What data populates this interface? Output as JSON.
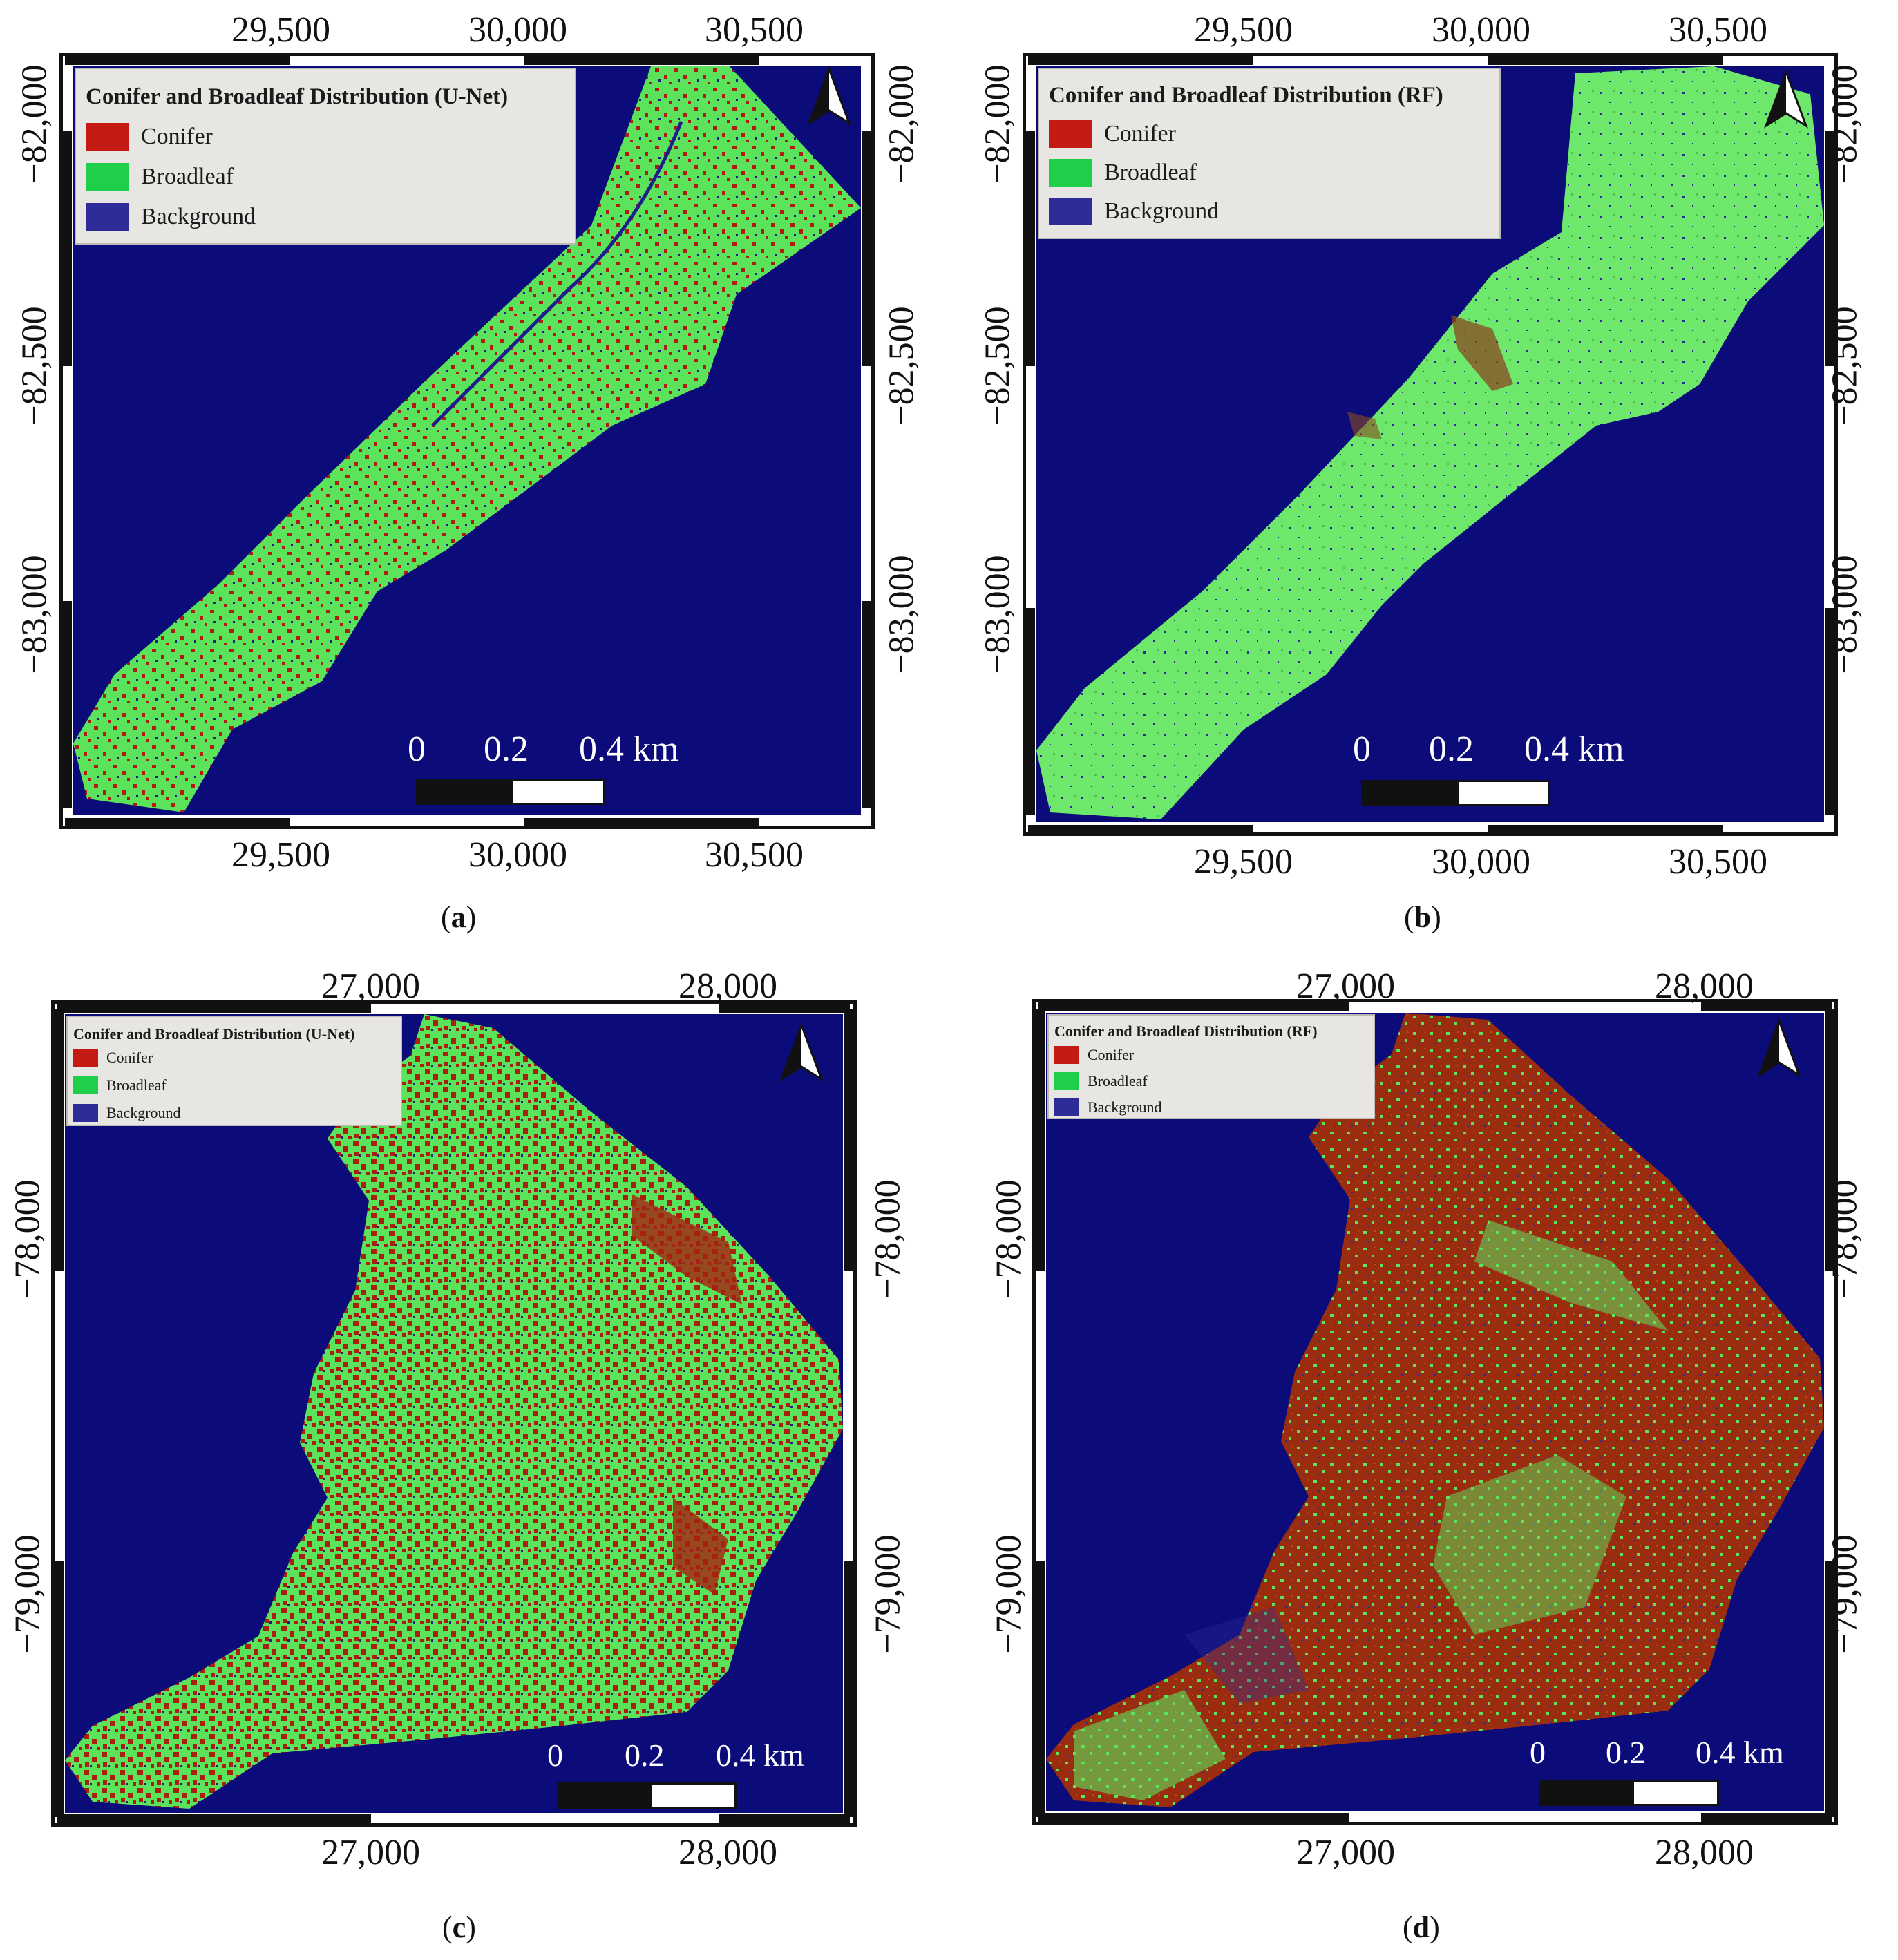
{
  "legend_labels": {
    "conifer": "Conifer",
    "broadleaf": "Broadleaf",
    "background": "Background"
  },
  "colors": {
    "conifer": "#b01c12",
    "broadleaf": "#5ce35c",
    "background": "#0b0b7a",
    "legend_conifer": "#c41a14",
    "legend_broadleaf": "#1fcf4a",
    "legend_background": "#2e2c98"
  },
  "icons": [
    "north-arrow-icon"
  ],
  "panels": [
    {
      "id": "a",
      "caption_letter": "a",
      "legend_title": "Conifer and Broadleaf Distribution (U-Net)",
      "x_ticks_top": [
        "29,500",
        "30,000",
        "30,500"
      ],
      "x_ticks_bottom": [
        "29,500",
        "30,000",
        "30,500"
      ],
      "y_ticks_left": [
        "−82,000",
        "−82,500",
        "−83,000"
      ],
      "y_ticks_right": [
        "−82,000",
        "−82,500",
        "−83,000"
      ],
      "scale_labels": [
        "0",
        "0.2",
        "0.4 km"
      ],
      "conifer_fraction": 0.3
    },
    {
      "id": "b",
      "caption_letter": "b",
      "legend_title": "Conifer and Broadleaf Distribution (RF)",
      "x_ticks_top": [
        "29,500",
        "30,000",
        "30,500"
      ],
      "x_ticks_bottom": [
        "29,500",
        "30,000",
        "30,500"
      ],
      "y_ticks_left": [
        "−82,000",
        "−82,500",
        "−83,000"
      ],
      "y_ticks_right": [
        "−82,000",
        "−82,500",
        "−83,000"
      ],
      "scale_labels": [
        "0",
        "0.2",
        "0.4 km"
      ],
      "conifer_fraction": 0.02
    },
    {
      "id": "c",
      "caption_letter": "c",
      "legend_title": "Conifer and Broadleaf Distribution (U-Net)",
      "x_ticks_top": [
        "27,000",
        "28,000"
      ],
      "x_ticks_bottom": [
        "27,000",
        "28,000"
      ],
      "y_ticks_left": [
        "−78,000",
        "−79,000"
      ],
      "y_ticks_right": [
        "−78,000",
        "−79,000"
      ],
      "scale_labels": [
        "0",
        "0.2",
        "0.4 km"
      ],
      "conifer_fraction": 0.45
    },
    {
      "id": "d",
      "caption_letter": "d",
      "legend_title": "Conifer and Broadleaf Distribution (RF)",
      "x_ticks_top": [
        "27,000",
        "28,000"
      ],
      "x_ticks_bottom": [
        "27,000",
        "28,000"
      ],
      "y_ticks_left": [
        "−78,000",
        "−79,000"
      ],
      "y_ticks_right": [
        "−78,000",
        "−79,000"
      ],
      "scale_labels": [
        "0",
        "0.2",
        "0.4 km"
      ],
      "conifer_fraction": 0.7
    }
  ]
}
